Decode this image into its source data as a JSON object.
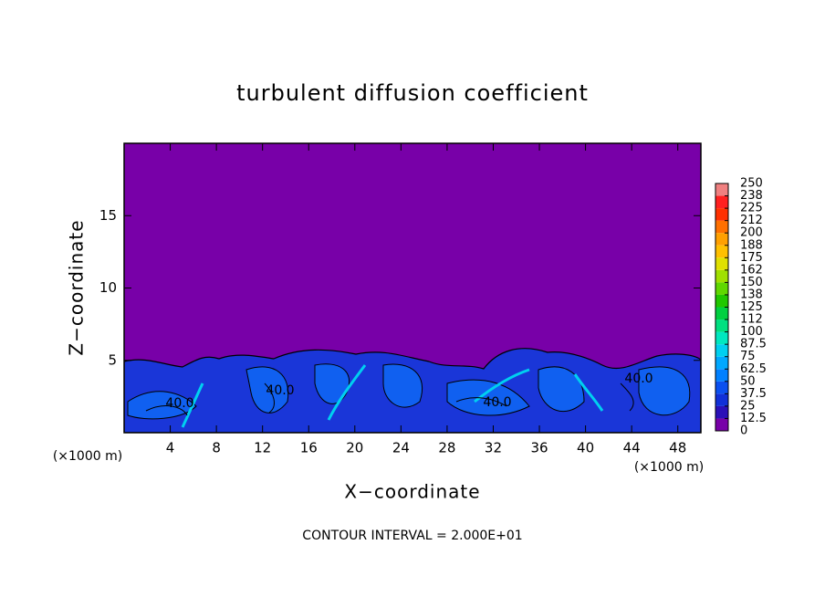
{
  "chart_data": {
    "type": "contour",
    "title": "turbulent diffusion coefficient",
    "xlabel": "X−coordinate",
    "ylabel": "Z−coordinate",
    "x_unit": "(×1000 m)",
    "footer": "CONTOUR INTERVAL = 2.000E+01",
    "contour_label": "40.0",
    "xlim": [
      0,
      50
    ],
    "xticks": [
      4,
      8,
      12,
      16,
      20,
      24,
      28,
      32,
      36,
      40,
      44,
      48
    ],
    "ylim": [
      0,
      20
    ],
    "yticks": [
      5,
      10,
      15
    ],
    "levels": [
      0,
      12.5,
      25,
      37.5,
      50,
      62.5,
      75,
      87.5,
      100,
      {
        "value": 112.5,
        "label": "112"
      },
      125,
      {
        "value": 137.5,
        "label": "138"
      },
      150,
      {
        "value": 162.5,
        "label": "162"
      },
      175,
      {
        "value": 187.5,
        "label": "188"
      },
      200,
      {
        "value": 212.5,
        "label": "212"
      },
      225,
      {
        "value": 237.5,
        "label": "238"
      },
      250
    ],
    "level_colors": [
      "#7800a8",
      "#2a10b8",
      "#1030d8",
      "#0a50f0",
      "#0080ff",
      "#00a8ff",
      "#00d0f0",
      "#00e8c0",
      "#00e080",
      "#00d040",
      "#20c800",
      "#60d800",
      "#a0e000",
      "#e0e000",
      "#ffc000",
      "#ffa000",
      "#ff7000",
      "#ff3000",
      "#ff2020",
      "#f08080"
    ]
  }
}
